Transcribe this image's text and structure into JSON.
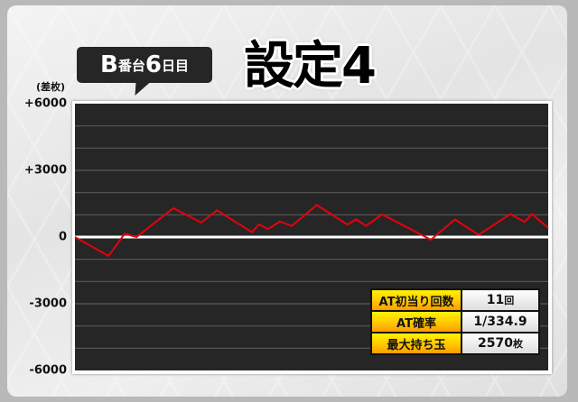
{
  "header": {
    "title": "設定4",
    "machine_label": {
      "letter": "B",
      "unit": "番台",
      "day": "6",
      "suffix": "日目"
    }
  },
  "chart_data": {
    "type": "line",
    "title": "",
    "xlabel": "",
    "ylabel": "(差枚)",
    "ylim": [
      -6000,
      6000
    ],
    "yticks": [
      6000,
      3000,
      0,
      -3000,
      -6000
    ],
    "ytick_labels": [
      "+6000",
      "+3000",
      "0",
      "-3000",
      "-6000"
    ],
    "grid": true,
    "grid_step": 1000,
    "line_color": "#e8000b",
    "background": "#262626",
    "x": [
      0,
      7.1,
      10.5,
      13,
      20.8,
      26.7,
      30,
      37.4,
      38.9,
      40.8,
      43.3,
      45.8,
      51.1,
      57.6,
      59.4,
      61.5,
      64.9,
      75.2,
      80.3,
      85.3,
      92,
      95,
      96.6,
      100
    ],
    "values": [
      0,
      -850,
      150,
      0,
      1300,
      650,
      1200,
      220,
      570,
      360,
      700,
      500,
      1440,
      560,
      800,
      500,
      1020,
      -120,
      790,
      100,
      1030,
      680,
      1030,
      410
    ]
  },
  "stats": [
    {
      "label": "AT初当り回数",
      "value": "11",
      "unit": "回"
    },
    {
      "label": "AT確率",
      "value": "1/334.9",
      "unit": ""
    },
    {
      "label": "最大持ち玉",
      "value": "2570",
      "unit": "枚"
    }
  ]
}
